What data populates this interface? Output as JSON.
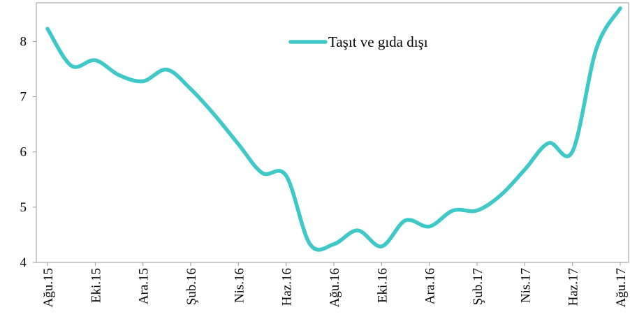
{
  "chart_data": {
    "type": "line",
    "categories": [
      "Ağu.15",
      null,
      "Eki.15",
      null,
      "Ara.15",
      null,
      "Şub.16",
      null,
      "Nis.16",
      null,
      "Haz.16",
      null,
      "Ağu.16",
      null,
      "Eki.16",
      null,
      "Ara.16",
      null,
      "Şub.17",
      null,
      "Nis.17",
      null,
      "Haz.17",
      null,
      "Ağu.17"
    ],
    "series": [
      {
        "name": "Taşıt ve gıda dışı",
        "color": "#3ec8c8",
        "values": [
          8.23,
          7.56,
          7.66,
          7.39,
          7.28,
          7.49,
          7.14,
          6.67,
          6.14,
          5.62,
          5.57,
          4.33,
          4.33,
          4.58,
          4.29,
          4.76,
          4.65,
          4.94,
          4.94,
          5.22,
          5.68,
          6.16,
          6.01,
          7.87,
          8.6
        ]
      }
    ],
    "ylim": [
      4,
      8.7
    ],
    "yticks": [
      4,
      5,
      6,
      7,
      8
    ],
    "legend": "top"
  }
}
